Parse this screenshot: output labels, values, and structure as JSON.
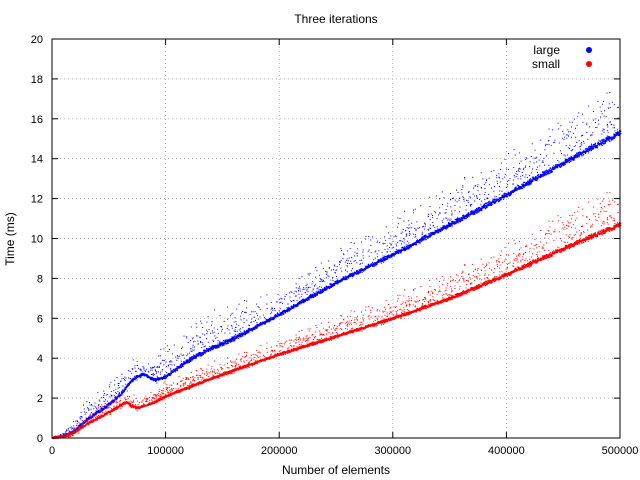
{
  "chart_data": {
    "type": "scatter",
    "title": "Three iterations",
    "xlabel": "Number of elements",
    "ylabel": "Time (ms)",
    "xlim": [
      0,
      500000
    ],
    "ylim": [
      0,
      20
    ],
    "xticks": [
      0,
      100000,
      200000,
      300000,
      400000,
      500000
    ],
    "xtick_labels": [
      "0",
      "100000",
      "200000",
      "300000",
      "400000",
      "500000"
    ],
    "yticks": [
      0,
      2,
      4,
      6,
      8,
      10,
      12,
      14,
      16,
      18,
      20
    ],
    "ytick_labels": [
      "0",
      "2",
      "4",
      "6",
      "8",
      "10",
      "12",
      "14",
      "16",
      "18",
      "20"
    ],
    "grid": true,
    "legend_position": "top-right",
    "series": [
      {
        "name": "large",
        "color": "#0000ff",
        "x": [
          0,
          10000,
          20000,
          30000,
          40000,
          50000,
          60000,
          70000,
          75000,
          80000,
          85000,
          90000,
          100000,
          120000,
          140000,
          160000,
          180000,
          200000,
          250000,
          300000,
          350000,
          400000,
          450000,
          500000
        ],
        "y": [
          0.0,
          0.1,
          0.4,
          0.9,
          1.3,
          1.7,
          2.2,
          2.9,
          3.1,
          3.2,
          3.05,
          2.9,
          3.1,
          3.9,
          4.5,
          5.0,
          5.6,
          6.2,
          7.8,
          9.2,
          10.7,
          12.2,
          13.8,
          15.3
        ],
        "spread_above": [
          0.0,
          0.2,
          0.5,
          0.8,
          0.8,
          0.9,
          1.0,
          0.9,
          0.7,
          0.6,
          0.6,
          0.9,
          1.2,
          1.3,
          1.4,
          1.5,
          1.2,
          1.0,
          1.3,
          1.4,
          1.6,
          1.7,
          1.8,
          2.0
        ]
      },
      {
        "name": "small",
        "color": "#ff0000",
        "x": [
          0,
          10000,
          20000,
          30000,
          40000,
          50000,
          60000,
          65000,
          70000,
          75000,
          80000,
          90000,
          100000,
          150000,
          200000,
          250000,
          300000,
          350000,
          400000,
          450000,
          500000
        ],
        "y": [
          0.0,
          0.05,
          0.3,
          0.7,
          1.0,
          1.3,
          1.65,
          1.8,
          1.6,
          1.5,
          1.6,
          1.8,
          2.1,
          3.2,
          4.2,
          5.1,
          6.0,
          7.0,
          8.2,
          9.5,
          10.7
        ],
        "spread_above": [
          0.0,
          0.1,
          0.3,
          0.4,
          0.5,
          0.5,
          0.6,
          0.6,
          0.4,
          0.4,
          0.4,
          0.5,
          0.6,
          0.6,
          0.7,
          0.8,
          0.9,
          1.1,
          1.3,
          1.5,
          1.6
        ]
      }
    ]
  }
}
